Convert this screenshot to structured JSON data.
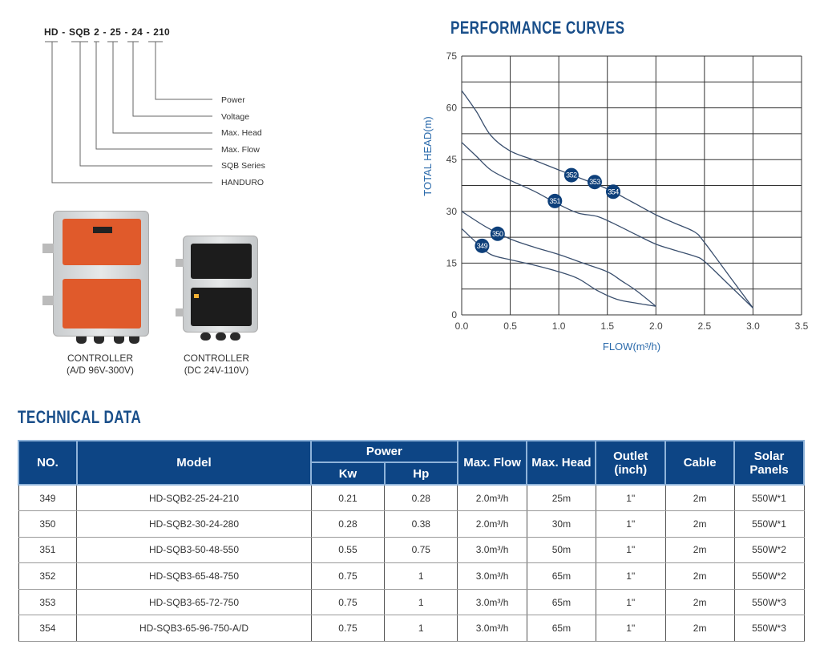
{
  "model_code": {
    "code": "HD - SQB 2 - 25 - 24 - 210",
    "legend": [
      "Power",
      "Voltage",
      "Max. Head",
      "Max. Flow",
      "SQB Series",
      "HANDURO"
    ]
  },
  "controllers": [
    {
      "label": "CONTROLLER",
      "spec": "(A/D 96V-300V)",
      "panel_color": "#e05a2b"
    },
    {
      "label": "CONTROLLER",
      "spec": "(DC 24V-110V)",
      "panel_color": "#1c1c1c"
    }
  ],
  "chart_title": "PERFORMANCE CURVES",
  "chart_data": {
    "type": "line",
    "title": "PERFORMANCE CURVES",
    "xlabel": "FLOW(m³/h)",
    "ylabel": "TOTAL HEAD(m)",
    "xlim": [
      0,
      3.5
    ],
    "ylim": [
      0,
      75
    ],
    "xticks": [
      "0.0",
      "0.5",
      "1.0",
      "1.5",
      "2.0",
      "2.5",
      "3.0",
      "3.5"
    ],
    "yticks": [
      "0",
      "15",
      "30",
      "45",
      "60",
      "75"
    ],
    "grid": true,
    "line_color": "#3a4f6e",
    "marker_color": "#0d3f7a",
    "series": [
      {
        "name": "352/353/354",
        "points": [
          [
            0,
            65
          ],
          [
            0.15,
            59
          ],
          [
            0.3,
            52
          ],
          [
            0.5,
            47.5
          ],
          [
            0.75,
            44.8
          ],
          [
            1.0,
            42
          ],
          [
            1.25,
            39.3
          ],
          [
            1.5,
            36.5
          ],
          [
            1.75,
            32.8
          ],
          [
            2.0,
            29
          ],
          [
            2.2,
            26.5
          ],
          [
            2.4,
            24
          ],
          [
            2.5,
            21
          ],
          [
            2.75,
            11.5
          ],
          [
            3.0,
            2
          ]
        ]
      },
      {
        "name": "351",
        "points": [
          [
            0,
            50
          ],
          [
            0.15,
            46
          ],
          [
            0.3,
            42
          ],
          [
            0.5,
            39
          ],
          [
            0.75,
            35.8
          ],
          [
            1.0,
            32
          ],
          [
            1.2,
            29.5
          ],
          [
            1.4,
            28.5
          ],
          [
            1.6,
            26
          ],
          [
            1.8,
            23.2
          ],
          [
            2.0,
            20.5
          ],
          [
            2.2,
            18.7
          ],
          [
            2.4,
            17
          ],
          [
            2.5,
            15.5
          ],
          [
            2.75,
            8.8
          ],
          [
            3.0,
            2
          ]
        ]
      },
      {
        "name": "350",
        "points": [
          [
            0,
            30
          ],
          [
            0.25,
            25.5
          ],
          [
            0.5,
            22
          ],
          [
            0.75,
            19.6
          ],
          [
            1.0,
            17.5
          ],
          [
            1.25,
            15
          ],
          [
            1.5,
            12.5
          ],
          [
            1.65,
            9.8
          ],
          [
            1.8,
            7
          ],
          [
            2.0,
            2.5
          ]
        ]
      },
      {
        "name": "349",
        "points": [
          [
            0,
            25
          ],
          [
            0.15,
            21
          ],
          [
            0.3,
            17.5
          ],
          [
            0.5,
            16
          ],
          [
            0.75,
            14.4
          ],
          [
            1.0,
            12.5
          ],
          [
            1.2,
            10.5
          ],
          [
            1.4,
            7
          ],
          [
            1.6,
            4.5
          ],
          [
            1.8,
            3.4
          ],
          [
            2.0,
            2.5
          ]
        ]
      }
    ],
    "markers": [
      {
        "label": "352",
        "x": 1.13,
        "y": 40.5
      },
      {
        "label": "353",
        "x": 1.37,
        "y": 38.5
      },
      {
        "label": "354",
        "x": 1.56,
        "y": 35.7
      },
      {
        "label": "351",
        "x": 0.96,
        "y": 33
      },
      {
        "label": "350",
        "x": 0.37,
        "y": 23.5
      },
      {
        "label": "349",
        "x": 0.21,
        "y": 20
      }
    ]
  },
  "technical_title": "TECHNICAL DATA",
  "table": {
    "headers": {
      "no": "NO.",
      "model": "Model",
      "power": "Power",
      "kw": "Kw",
      "hp": "Hp",
      "flow": "Max. Flow",
      "head": "Max. Head",
      "outlet": "Outlet (inch)",
      "cable": "Cable",
      "solar": "Solar Panels"
    },
    "rows": [
      [
        "349",
        "HD-SQB2-25-24-210",
        "0.21",
        "0.28",
        "2.0m³/h",
        "25m",
        "1\"",
        "2m",
        "550W*1"
      ],
      [
        "350",
        "HD-SQB2-30-24-280",
        "0.28",
        "0.38",
        "2.0m³/h",
        "30m",
        "1\"",
        "2m",
        "550W*1"
      ],
      [
        "351",
        "HD-SQB3-50-48-550",
        "0.55",
        "0.75",
        "3.0m³/h",
        "50m",
        "1\"",
        "2m",
        "550W*2"
      ],
      [
        "352",
        "HD-SQB3-65-48-750",
        "0.75",
        "1",
        "3.0m³/h",
        "65m",
        "1\"",
        "2m",
        "550W*2"
      ],
      [
        "353",
        "HD-SQB3-65-72-750",
        "0.75",
        "1",
        "3.0m³/h",
        "65m",
        "1\"",
        "2m",
        "550W*3"
      ],
      [
        "354",
        "HD-SQB3-65-96-750-A/D",
        "0.75",
        "1",
        "3.0m³/h",
        "65m",
        "1\"",
        "2m",
        "550W*3"
      ]
    ]
  }
}
